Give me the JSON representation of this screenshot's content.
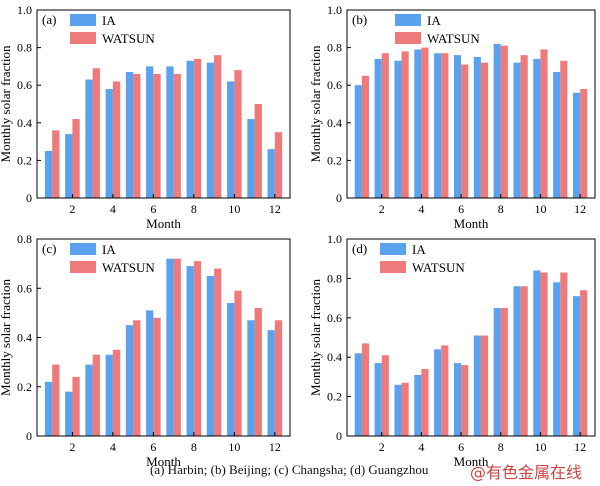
{
  "figure": {
    "caption": "(a) Harbin; (b) Beijing; (c) Changsha; (d) Guangzhou",
    "watermark": "@有色金属在线"
  },
  "colors": {
    "IA": "#5aa2ee",
    "WATSUN": "#ee7a7c"
  },
  "chart_data": [
    {
      "type": "bar",
      "panel_label": "(a)",
      "xlabel": "Month",
      "ylabel": "Monthly solar fraction",
      "ylim": [
        0,
        1.0
      ],
      "yticks": [
        "0",
        "0.2",
        "0.4",
        "0.6",
        "0.8",
        "1.0"
      ],
      "xticks": [
        "2",
        "4",
        "6",
        "8",
        "10",
        "12"
      ],
      "categories": [
        1,
        2,
        3,
        4,
        5,
        6,
        7,
        8,
        9,
        10,
        11,
        12
      ],
      "legend": "top-left",
      "series": [
        {
          "name": "IA",
          "values": [
            0.25,
            0.34,
            0.63,
            0.58,
            0.67,
            0.7,
            0.7,
            0.73,
            0.72,
            0.62,
            0.42,
            0.26
          ]
        },
        {
          "name": "WATSUN",
          "values": [
            0.36,
            0.42,
            0.69,
            0.62,
            0.66,
            0.66,
            0.66,
            0.74,
            0.76,
            0.68,
            0.5,
            0.35
          ]
        }
      ]
    },
    {
      "type": "bar",
      "panel_label": "(b)",
      "xlabel": "Month",
      "ylabel": "Monthly solar fraction",
      "ylim": [
        0,
        1.0
      ],
      "yticks": [
        "0",
        "0.2",
        "0.4",
        "0.6",
        "0.8",
        "1.0"
      ],
      "xticks": [
        "2",
        "4",
        "6",
        "8",
        "10",
        "12"
      ],
      "categories": [
        1,
        2,
        3,
        4,
        5,
        6,
        7,
        8,
        9,
        10,
        11,
        12
      ],
      "legend": "top-center",
      "series": [
        {
          "name": "IA",
          "values": [
            0.6,
            0.74,
            0.73,
            0.79,
            0.77,
            0.76,
            0.75,
            0.82,
            0.72,
            0.74,
            0.67,
            0.56
          ]
        },
        {
          "name": "WATSUN",
          "values": [
            0.65,
            0.77,
            0.78,
            0.8,
            0.77,
            0.71,
            0.72,
            0.81,
            0.76,
            0.79,
            0.73,
            0.58
          ]
        }
      ]
    },
    {
      "type": "bar",
      "panel_label": "(c)",
      "xlabel": "Month",
      "ylabel": "Monthly solar fraction",
      "ylim": [
        0,
        0.8
      ],
      "yticks": [
        "0",
        "0.2",
        "0.4",
        "0.6",
        "0.8"
      ],
      "xticks": [
        "2",
        "4",
        "6",
        "8",
        "10",
        "12"
      ],
      "categories": [
        1,
        2,
        3,
        4,
        5,
        6,
        7,
        8,
        9,
        10,
        11,
        12
      ],
      "legend": "top-left",
      "series": [
        {
          "name": "IA",
          "values": [
            0.22,
            0.18,
            0.29,
            0.33,
            0.45,
            0.51,
            0.72,
            0.69,
            0.65,
            0.54,
            0.47,
            0.43
          ]
        },
        {
          "name": "WATSUN",
          "values": [
            0.29,
            0.24,
            0.33,
            0.35,
            0.47,
            0.48,
            0.72,
            0.71,
            0.68,
            0.59,
            0.52,
            0.47
          ]
        }
      ]
    },
    {
      "type": "bar",
      "panel_label": "(d)",
      "xlabel": "Month",
      "ylabel": "Monthly solar fraction",
      "ylim": [
        0,
        1.0
      ],
      "yticks": [
        "0",
        "0.2",
        "0.4",
        "0.6",
        "0.8",
        "1.0"
      ],
      "xticks": [
        "2",
        "4",
        "6",
        "8",
        "10",
        "12"
      ],
      "categories": [
        1,
        2,
        3,
        4,
        5,
        6,
        7,
        8,
        9,
        10,
        11,
        12
      ],
      "legend": "top-left",
      "series": [
        {
          "name": "IA",
          "values": [
            0.42,
            0.37,
            0.26,
            0.31,
            0.44,
            0.37,
            0.51,
            0.65,
            0.76,
            0.84,
            0.78,
            0.71
          ]
        },
        {
          "name": "WATSUN",
          "values": [
            0.47,
            0.41,
            0.27,
            0.34,
            0.46,
            0.36,
            0.51,
            0.65,
            0.76,
            0.83,
            0.83,
            0.74
          ]
        }
      ]
    }
  ]
}
